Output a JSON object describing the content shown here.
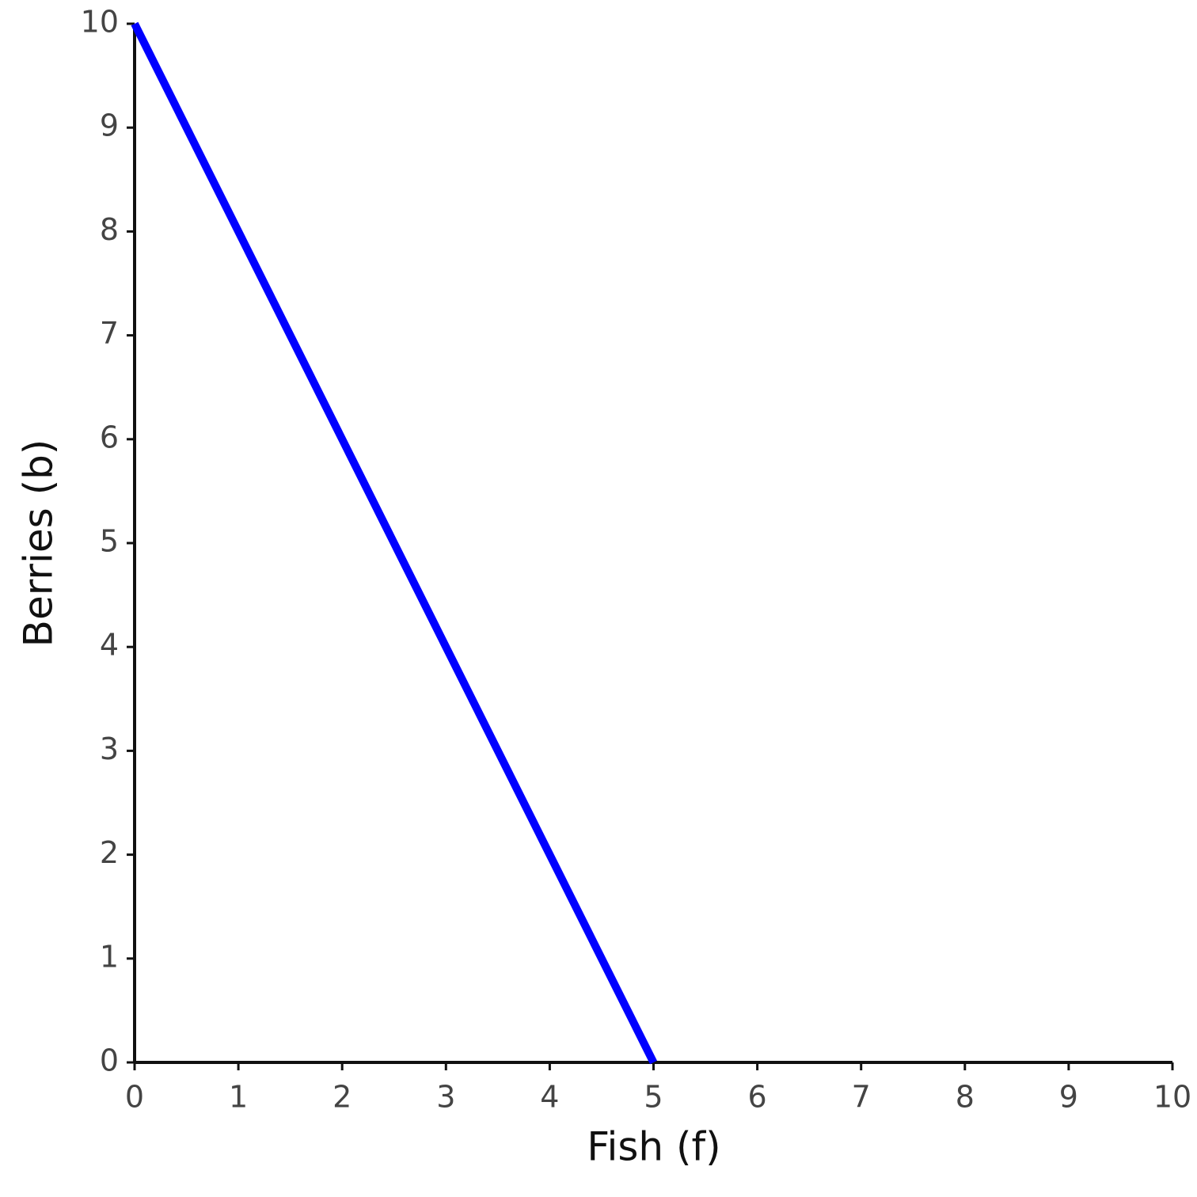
{
  "chart_data": {
    "type": "line",
    "x_label": "Fish (f)",
    "y_label": "Berries (b)",
    "x": [
      0,
      5
    ],
    "values": [
      10,
      0
    ],
    "color": "#0000ff",
    "xlim": [
      0,
      10
    ],
    "xticks": [
      0,
      1,
      2,
      3,
      4,
      5,
      6,
      7,
      8,
      9,
      10
    ],
    "ylim": [
      0,
      10
    ],
    "yticks": [
      0,
      1,
      2,
      3,
      4,
      5,
      6,
      7,
      8,
      9,
      10
    ],
    "grid": false
  }
}
